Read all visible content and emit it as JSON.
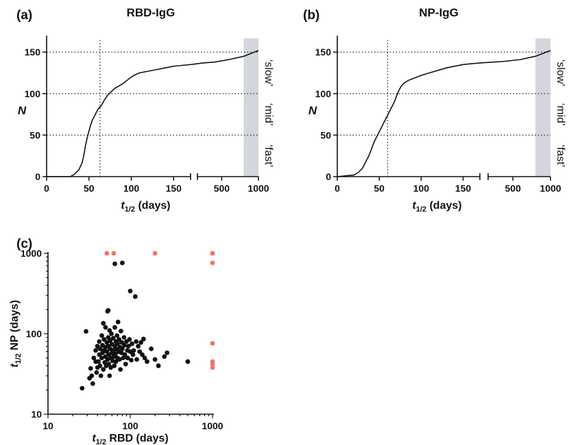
{
  "figure": {
    "panels": [
      {
        "letter": "(a)",
        "title": "RBD-IgG"
      },
      {
        "letter": "(b)",
        "title": "NP-IgG"
      },
      {
        "letter": "(c)"
      }
    ]
  },
  "chart_data": [
    {
      "type": "line",
      "panel": "(a)",
      "title": "RBD-IgG",
      "xlabel": "t1/2 (days)",
      "ylabel": "N",
      "x_scale": "broken linear: 0–170 then 170–1000",
      "xlim": [
        0,
        1000
      ],
      "ylim": [
        0,
        160
      ],
      "x_ticks": [
        0,
        50,
        100,
        150,
        500,
        1000
      ],
      "y_ticks": [
        0,
        50,
        100,
        150
      ],
      "reference_lines": {
        "horizontal_y": [
          50,
          100,
          150
        ],
        "vertical_x": [
          63
        ]
      },
      "shaded_x_range": [
        800,
        1000
      ],
      "side_labels": [
        "‘slow’",
        "‘mid’",
        "‘fast’"
      ],
      "series": [
        {
          "x": [
            0,
            28,
            33,
            38,
            42,
            44,
            46,
            48,
            50,
            52,
            54,
            56,
            58,
            60,
            62,
            64,
            66,
            68,
            70,
            72,
            74,
            76,
            78,
            80,
            85,
            90,
            95,
            100,
            105,
            110,
            120,
            130,
            140,
            150,
            160,
            170,
            250,
            400,
            600,
            800,
            1000
          ],
          "y": [
            0,
            0,
            3,
            8,
            17,
            26,
            38,
            47,
            55,
            62,
            68,
            72,
            76,
            80,
            83,
            85,
            88,
            92,
            95,
            98,
            100,
            102,
            104,
            106,
            109,
            112,
            116,
            120,
            123,
            125,
            127,
            129,
            131,
            133,
            134,
            135,
            137,
            138,
            141,
            145,
            152
          ]
        }
      ]
    },
    {
      "type": "line",
      "panel": "(b)",
      "title": "NP-IgG",
      "xlabel": "t1/2 (days)",
      "ylabel": "N",
      "x_scale": "broken linear: 0–170 then 170–1000",
      "xlim": [
        0,
        1000
      ],
      "ylim": [
        0,
        160
      ],
      "x_ticks": [
        0,
        50,
        100,
        150,
        500,
        1000
      ],
      "y_ticks": [
        0,
        50,
        100,
        150
      ],
      "reference_lines": {
        "horizontal_y": [
          50,
          100,
          150
        ],
        "vertical_x": [
          60
        ]
      },
      "shaded_x_range": [
        800,
        1000
      ],
      "side_labels": [
        "‘slow’",
        "‘mid’",
        "‘fast’"
      ],
      "series": [
        {
          "x": [
            0,
            20,
            25,
            30,
            34,
            38,
            41,
            44,
            47,
            50,
            53,
            56,
            59,
            62,
            65,
            68,
            71,
            74,
            77,
            80,
            85,
            90,
            95,
            100,
            110,
            120,
            130,
            140,
            150,
            160,
            170,
            250,
            400,
            600,
            800,
            1000
          ],
          "y": [
            0,
            2,
            5,
            10,
            18,
            26,
            34,
            42,
            48,
            54,
            60,
            66,
            72,
            78,
            84,
            90,
            98,
            105,
            110,
            113,
            116,
            118,
            120,
            122,
            125,
            128,
            131,
            133,
            135,
            136,
            137,
            138,
            139,
            141,
            145,
            152
          ]
        }
      ]
    },
    {
      "type": "scatter",
      "panel": "(c)",
      "xlabel": "t1/2 RBD (days)",
      "ylabel": "t1/2 NP (days)",
      "x_scale": "log",
      "y_scale": "log",
      "xlim": [
        10,
        1000
      ],
      "ylim": [
        10,
        1000
      ],
      "x_ticks": [
        10,
        100,
        1000
      ],
      "y_ticks": [
        10,
        100,
        1000
      ],
      "series": [
        {
          "name": "",
          "color": "#111111",
          "points": [
            [
              26,
              21
            ],
            [
              29,
              107
            ],
            [
              32,
              28
            ],
            [
              33,
              37
            ],
            [
              34,
              30
            ],
            [
              35,
              24
            ],
            [
              36,
              50
            ],
            [
              38,
              45
            ],
            [
              38,
              62
            ],
            [
              39,
              33
            ],
            [
              40,
              70
            ],
            [
              40,
              38
            ],
            [
              41,
              45
            ],
            [
              42,
              80
            ],
            [
              42,
              55
            ],
            [
              43,
              65
            ],
            [
              43,
              40
            ],
            [
              44,
              30
            ],
            [
              45,
              95
            ],
            [
              45,
              50
            ],
            [
              46,
              72
            ],
            [
              46,
              58
            ],
            [
              47,
              36
            ],
            [
              47,
              135
            ],
            [
              48,
              85
            ],
            [
              48,
              62
            ],
            [
              49,
              44
            ],
            [
              50,
              120
            ],
            [
              50,
              68
            ],
            [
              50,
              52
            ],
            [
              51,
              40
            ],
            [
              52,
              78
            ],
            [
              52,
              60
            ],
            [
              53,
              190
            ],
            [
              53,
              48
            ],
            [
              54,
              195
            ],
            [
              54,
              90
            ],
            [
              54,
              70
            ],
            [
              55,
              55
            ],
            [
              55,
              42
            ],
            [
              56,
              30
            ],
            [
              56,
              110
            ],
            [
              57,
              82
            ],
            [
              57,
              65
            ],
            [
              58,
              50
            ],
            [
              58,
              38
            ],
            [
              59,
              100
            ],
            [
              60,
              74
            ],
            [
              60,
              58
            ],
            [
              61,
              46
            ],
            [
              62,
              88
            ],
            [
              62,
              62
            ],
            [
              63,
              52
            ],
            [
              64,
              40
            ],
            [
              65,
              120
            ],
            [
              65,
              70
            ],
            [
              66,
              56
            ],
            [
              67,
              80
            ],
            [
              67,
              45
            ],
            [
              68,
              64
            ],
            [
              69,
              95
            ],
            [
              70,
              75
            ],
            [
              70,
              50
            ],
            [
              71,
              140
            ],
            [
              72,
              60
            ],
            [
              73,
              85
            ],
            [
              74,
              48
            ],
            [
              75,
              68
            ],
            [
              76,
              36
            ],
            [
              77,
              108
            ],
            [
              78,
              58
            ],
            [
              79,
              78
            ],
            [
              80,
              760
            ],
            [
              80,
              65
            ],
            [
              82,
              50
            ],
            [
              84,
              90
            ],
            [
              85,
              72
            ],
            [
              86,
              55
            ],
            [
              88,
              42
            ],
            [
              90,
              80
            ],
            [
              92,
              62
            ],
            [
              93,
              50
            ],
            [
              95,
              70
            ],
            [
              98,
              85
            ],
            [
              100,
              340
            ],
            [
              100,
              60
            ],
            [
              103,
              47
            ],
            [
              105,
              75
            ],
            [
              108,
              55
            ],
            [
              110,
              62
            ],
            [
              115,
              290
            ],
            [
              118,
              80
            ],
            [
              120,
              48
            ],
            [
              125,
              70
            ],
            [
              130,
              60
            ],
            [
              135,
              78
            ],
            [
              140,
              55
            ],
            [
              145,
              86
            ],
            [
              150,
              50
            ],
            [
              160,
              45
            ],
            [
              180,
              65
            ],
            [
              200,
              48
            ],
            [
              220,
              40
            ],
            [
              260,
              52
            ],
            [
              280,
              58
            ],
            [
              500,
              45
            ],
            [
              65,
              740
            ]
          ]
        },
        {
          "name": "",
          "color": "#f07468",
          "points": [
            [
              52,
              1000
            ],
            [
              63,
              1000
            ],
            [
              200,
              1000
            ],
            [
              1000,
              1000
            ],
            [
              1000,
              1000
            ],
            [
              1000,
              760
            ],
            [
              1000,
              76
            ],
            [
              1000,
              45
            ],
            [
              1000,
              42
            ],
            [
              1000,
              38
            ]
          ]
        }
      ]
    }
  ]
}
